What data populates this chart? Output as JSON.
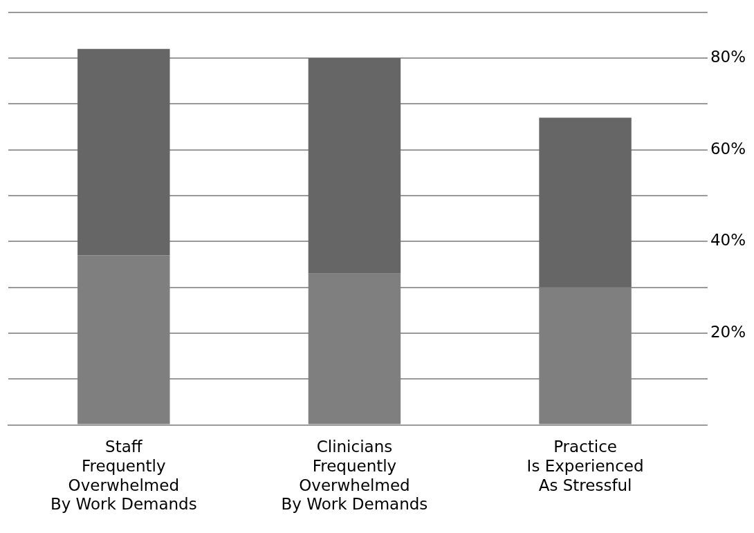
{
  "chart_data": {
    "type": "bar",
    "stacked": true,
    "categories": [
      "Staff\nFrequently\nOverwhelmed\nBy Work Demands",
      "Clinicians\nFrequently\nOverwhelmed\nBy Work Demands",
      "Practice\nIs Experienced\nAs Stressful"
    ],
    "series": [
      {
        "color": "#7f7f7f",
        "values": [
          37,
          33,
          30
        ]
      },
      {
        "color": "#666666",
        "values": [
          45,
          47,
          37
        ]
      }
    ],
    "ylim": [
      0,
      90
    ],
    "yticks": [
      {
        "value": 0,
        "label": null
      },
      {
        "value": 10,
        "label": null
      },
      {
        "value": 20,
        "label": "20%"
      },
      {
        "value": 30,
        "label": null
      },
      {
        "value": 40,
        "label": "40%"
      },
      {
        "value": 50,
        "label": null
      },
      {
        "value": 60,
        "label": "60%"
      },
      {
        "value": 70,
        "label": null
      },
      {
        "value": 80,
        "label": "80%"
      },
      {
        "value": 90,
        "label": null
      }
    ],
    "grid": "y",
    "legend": false
  }
}
